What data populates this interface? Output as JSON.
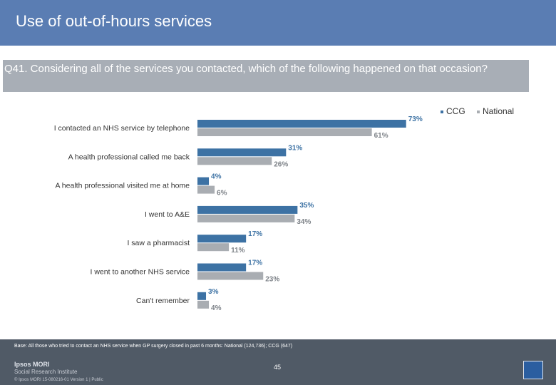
{
  "header": {
    "title": "Use of out-of-hours services"
  },
  "question": {
    "text": "Q41. Considering all of the services you contacted, which of the following happened on that occasion?"
  },
  "chart_data": {
    "type": "bar",
    "orientation": "horizontal",
    "categories": [
      "I contacted an NHS service by telephone",
      "A health professional called me back",
      "A health professional visited me at home",
      "I went to A&E",
      "I saw a pharmacist",
      "I went to another NHS service",
      "Can't remember"
    ],
    "series": [
      {
        "name": "CCG",
        "values": [
          73,
          31,
          4,
          35,
          17,
          17,
          3
        ],
        "labels": [
          "73%",
          "31%",
          "4%",
          "35%",
          "17%",
          "17%",
          "3%"
        ],
        "color": "#3d72a4"
      },
      {
        "name": "National",
        "values": [
          61,
          26,
          6,
          34,
          11,
          23,
          4
        ],
        "labels": [
          "61%",
          "26%",
          "6%",
          "34%",
          "11%",
          "23%",
          "4%"
        ],
        "color": "#a9adb2"
      }
    ],
    "legend": "top-right",
    "xlim": [
      0,
      100
    ],
    "grid": false
  },
  "footer": {
    "base": "Base: All those who tried to contact an NHS service when GP surgery closed in past 6 months: National (124,736); CCG (647)",
    "brand_line1": "Ipsos MORI",
    "brand_line2": "Social Research Institute",
    "copyright": "© Ipsos MORI    15-080216-01 Version 1 | Public",
    "page_number": "45"
  }
}
